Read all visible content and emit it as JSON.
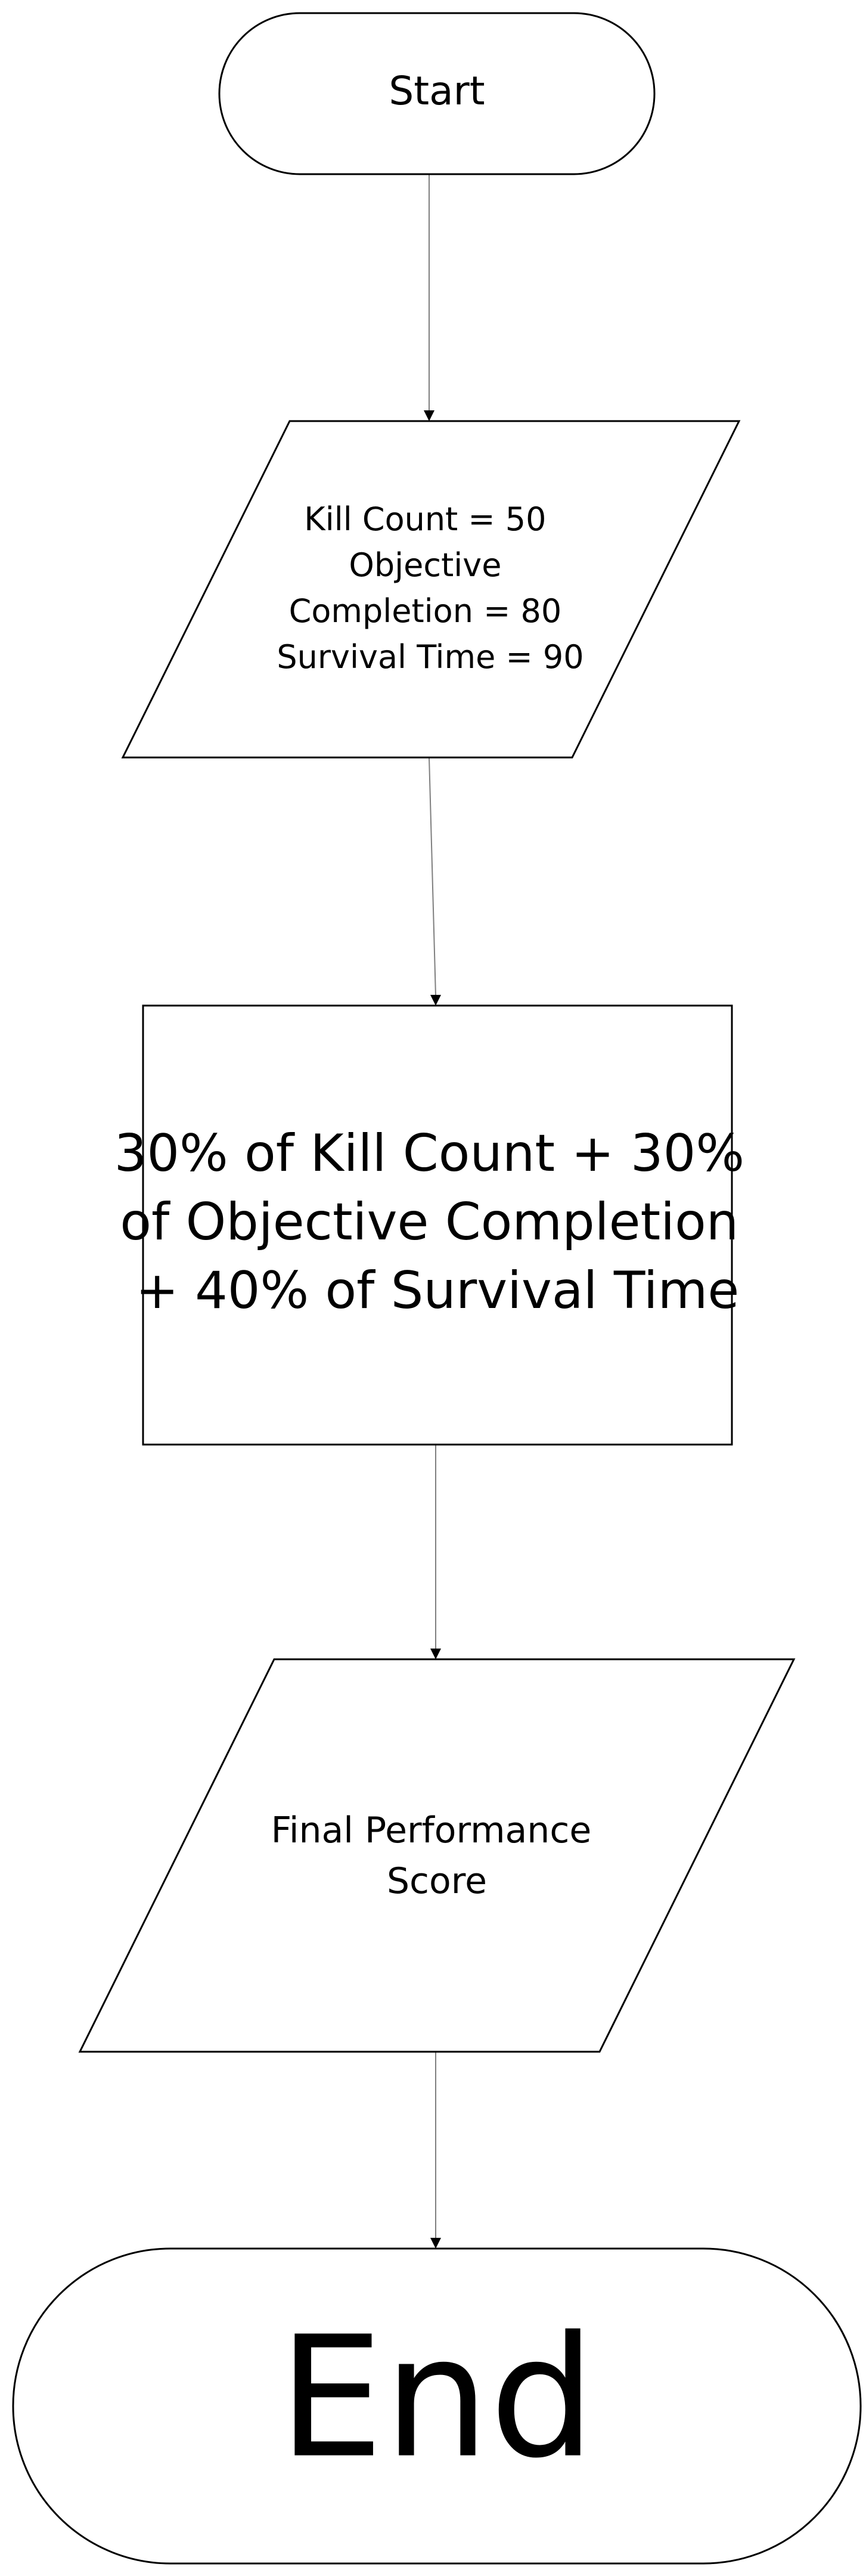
{
  "flowchart": {
    "start": {
      "label": "Start"
    },
    "input": {
      "lines": [
        "Kill Count = 50",
        "Objective",
        "Completion = 80",
        "Survival Time = 90"
      ]
    },
    "process": {
      "lines": [
        "30% of Kill Count + 30%",
        "of Objective Completion",
        "+ 40% of Survival Time"
      ]
    },
    "output": {
      "lines": [
        "Final Performance",
        "Score"
      ]
    },
    "end": {
      "label": "End"
    }
  },
  "colors": {
    "stroke": "#000000",
    "connector": "#7f7f7f",
    "fill": "#ffffff"
  }
}
